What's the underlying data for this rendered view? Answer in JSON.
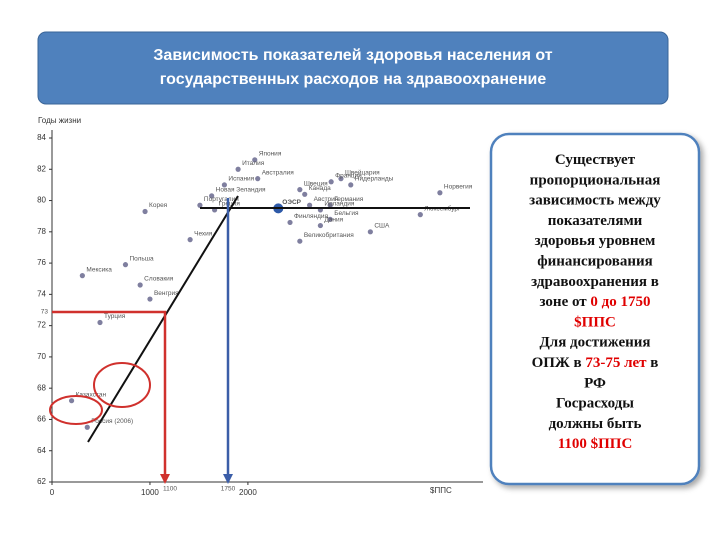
{
  "slide_title": [
    "Зависимость показателей здоровья населения от",
    "государственных расходов на здравоохранение"
  ],
  "chart_data": {
    "type": "scatter",
    "ylabel": "Годы жизни",
    "xlabel": "$ППС",
    "xlim": [
      0,
      4400
    ],
    "ylim": [
      62,
      84
    ],
    "xticks": [
      0,
      1000,
      2000
    ],
    "yticks": [
      62,
      64,
      66,
      68,
      70,
      72,
      74,
      76,
      78,
      80,
      82,
      84
    ],
    "color": "#7f7f9f",
    "highlight_color": "#2e5aa8",
    "labels": [
      "Япония",
      "Италия",
      "Австралия",
      "Испания",
      "Швеция",
      "Канада",
      "Новая Зеландия",
      "Португалия",
      "Норвегия",
      "Нидерланды",
      "Швейцария",
      "Франция",
      "Австрия",
      "Германия",
      "Ирландия",
      "Бельгия",
      "Дания",
      "США",
      "Люксембург",
      "Корея",
      "Греция",
      "Финляндия",
      "Великобритания",
      "Чехия",
      "Польша",
      "Мексика",
      "Словакия",
      "Венгрия",
      "Турция",
      "ОЭСР",
      "Казахстан",
      "Россия (2006)"
    ],
    "x": [
      2070,
      1900,
      2100,
      1760,
      2530,
      2580,
      1630,
      1510,
      3960,
      3050,
      2950,
      2850,
      2630,
      2840,
      2740,
      2840,
      2740,
      3250,
      3760,
      950,
      1660,
      2430,
      2530,
      1410,
      750,
      310,
      900,
      1000,
      490,
      2310,
      200,
      360
    ],
    "values": [
      82.6,
      82.0,
      81.4,
      81.0,
      80.7,
      80.4,
      80.3,
      79.7,
      80.5,
      81.0,
      81.4,
      81.2,
      79.7,
      79.7,
      79.4,
      78.8,
      78.4,
      78.0,
      79.1,
      79.3,
      79.4,
      78.6,
      77.4,
      77.5,
      75.9,
      75.2,
      74.6,
      73.7,
      72.2,
      79.5,
      67.2,
      65.5
    ],
    "annotations": [
      "73",
      "1100",
      "1750"
    ]
  },
  "note": {
    "lines": [
      [
        {
          "text": "Существует"
        }
      ],
      [
        {
          "text": "пропорциональная"
        }
      ],
      [
        {
          "text": "зависимость между"
        }
      ],
      [
        {
          "text": "показателями"
        }
      ],
      [
        {
          "text": "здоровья  уровнем"
        }
      ],
      [
        {
          "text": "финансирования"
        }
      ],
      [
        {
          "text": "здравоохранения в"
        }
      ],
      [
        {
          "text": "зоне от "
        },
        {
          "text": "0 до 1750",
          "color": "#e00000"
        }
      ],
      [
        {
          "text": "$ППС",
          "color": "#e00000"
        }
      ],
      [
        {
          "text": "Для достижения"
        }
      ],
      [
        {
          "text": "ОПЖ в "
        },
        {
          "text": "73-75 лет",
          "color": "#e00000"
        },
        {
          "text": " в"
        }
      ],
      [
        {
          "text": "РФ"
        }
      ],
      [
        {
          "text": "Госрасходы"
        }
      ],
      [
        {
          "text": "должны быть"
        }
      ],
      [
        {
          "text": "1100 $ППС",
          "color": "#e00000"
        }
      ]
    ]
  }
}
